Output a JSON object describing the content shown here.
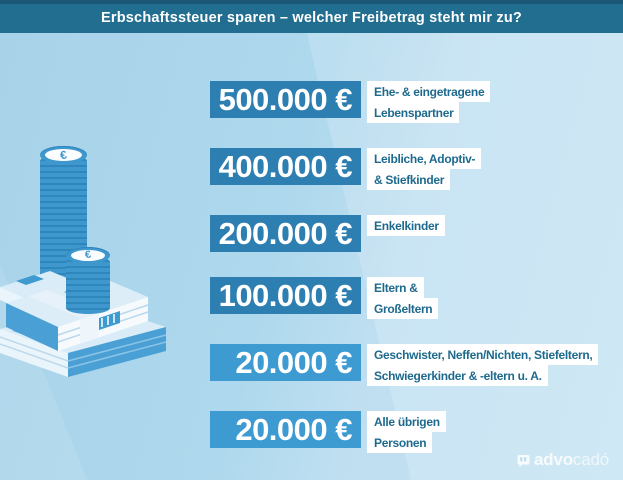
{
  "header": {
    "title": "Erbschaftssteuer sparen – welcher Freibetrag steht mir zu?"
  },
  "rows": [
    {
      "amount": "500.000 €",
      "label_lines": [
        "Ehe- & eingetragene",
        "Lebenspartner"
      ],
      "box_color": "#2e7fb1"
    },
    {
      "amount": "400.000 €",
      "label_lines": [
        "Leibliche, Adoptiv-",
        "& Stiefkinder"
      ],
      "box_color": "#2e7fb1"
    },
    {
      "amount": "200.000 €",
      "label_lines": [
        "Enkelkinder"
      ],
      "box_color": "#2e7fb1"
    },
    {
      "amount": "100.000 €",
      "label_lines": [
        "Eltern &",
        "Großeltern"
      ],
      "box_color": "#2e7fb1"
    },
    {
      "amount": "20.000 €",
      "label_lines": [
        "Geschwister, Neffen/Nichten, Stiefeltern,",
        "Schwiegerkinder & -eltern u. A."
      ],
      "box_color": "#3e9bd1"
    },
    {
      "amount": "20.000 €",
      "label_lines": [
        "Alle übrigen",
        "Personen"
      ],
      "box_color": "#3e9bd1"
    }
  ],
  "footer": {
    "logo_bold": "advo",
    "logo_light": "cadó"
  },
  "illustration": {
    "coin_symbol": "€",
    "description_icons": [
      "coin-stack-tall",
      "coin-stack-short",
      "banknote-bundles"
    ]
  },
  "colors": {
    "header_bg": "#226e90",
    "header_strip": "#1b5877",
    "background": "#aed8ed",
    "box_blue": "#2e7fb1",
    "box_blue_light": "#3e9bd1",
    "label_text": "#1d6a8e",
    "amount_text": "#ffffff",
    "illustration_blue": "#3e98ce"
  },
  "chart_data": {
    "type": "table",
    "title": "Erbschaftssteuer sparen – welcher Freibetrag steht mir zu?",
    "categories": [
      "Ehe- & eingetragene Lebenspartner",
      "Leibliche, Adoptiv- & Stiefkinder",
      "Enkelkinder",
      "Eltern & Großeltern",
      "Geschwister, Neffen/Nichten, Stiefeltern, Schwiegerkinder & -eltern u. A.",
      "Alle übrigen Personen"
    ],
    "values": [
      500000,
      400000,
      200000,
      100000,
      20000,
      20000
    ],
    "unit": "€",
    "value_labels": [
      "500.000 €",
      "400.000 €",
      "200.000 €",
      "100.000 €",
      "20.000 €",
      "20.000 €"
    ]
  }
}
